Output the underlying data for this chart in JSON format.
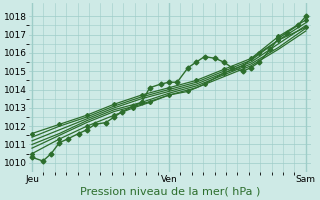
{
  "title": "",
  "xlabel": "Pression niveau de la mer( hPa )",
  "bg_color": "#ceeae6",
  "grid_color": "#9ecdc8",
  "line_color": "#2d6e2d",
  "ylim": [
    1009.5,
    1018.7
  ],
  "yticks": [
    1010,
    1011,
    1012,
    1013,
    1014,
    1015,
    1016,
    1017,
    1018
  ],
  "xtick_labels": [
    "Jeu",
    "Ven",
    "Sam"
  ],
  "xtick_positions": [
    0.0,
    0.5,
    1.0
  ],
  "xlabel_fontsize": 8,
  "tick_fontsize": 6.5,
  "series": [
    {
      "x": [
        0.0,
        0.04,
        0.07,
        0.1,
        0.13,
        0.17,
        0.2,
        0.23,
        0.27,
        0.3,
        0.33,
        0.37,
        0.4,
        0.43,
        0.47,
        0.5,
        0.53,
        0.57,
        0.6,
        0.63,
        0.67,
        0.7,
        0.73,
        0.77,
        0.8,
        0.83,
        0.87,
        0.9,
        0.93,
        0.97,
        1.0
      ],
      "y": [
        1010.3,
        1010.1,
        1010.5,
        1011.1,
        1011.3,
        1011.6,
        1011.8,
        1012.1,
        1012.2,
        1012.5,
        1012.8,
        1013.1,
        1013.3,
        1014.1,
        1014.3,
        1014.4,
        1014.4,
        1015.2,
        1015.5,
        1015.8,
        1015.7,
        1015.5,
        1015.2,
        1015.0,
        1015.2,
        1015.5,
        1016.2,
        1016.8,
        1017.1,
        1017.5,
        1018.0
      ],
      "marker": true,
      "lw": 1.0,
      "ms": 2.5
    },
    {
      "x": [
        0.0,
        0.1,
        0.2,
        0.3,
        0.37,
        0.43,
        0.5,
        0.57,
        0.63,
        0.7,
        0.77,
        0.83,
        0.9,
        1.0
      ],
      "y": [
        1010.5,
        1011.3,
        1012.0,
        1012.6,
        1013.0,
        1013.3,
        1013.7,
        1013.9,
        1014.3,
        1014.9,
        1015.3,
        1016.0,
        1016.7,
        1017.4
      ],
      "marker": true,
      "lw": 0.9,
      "ms": 2.0
    },
    {
      "x": [
        0.0,
        0.1,
        0.2,
        0.3,
        0.4,
        0.5,
        0.6,
        0.7,
        0.8,
        0.9,
        1.0
      ],
      "y": [
        1010.8,
        1011.5,
        1012.2,
        1012.8,
        1013.2,
        1013.7,
        1014.1,
        1014.7,
        1015.3,
        1016.2,
        1017.2
      ],
      "marker": false,
      "lw": 0.9,
      "ms": 0
    },
    {
      "x": [
        0.0,
        0.1,
        0.2,
        0.3,
        0.4,
        0.5,
        0.6,
        0.7,
        0.8,
        0.9,
        1.0
      ],
      "y": [
        1011.0,
        1011.6,
        1012.3,
        1012.9,
        1013.3,
        1013.8,
        1014.2,
        1014.8,
        1015.4,
        1016.3,
        1017.35
      ],
      "marker": false,
      "lw": 0.9,
      "ms": 0
    },
    {
      "x": [
        0.0,
        0.1,
        0.2,
        0.3,
        0.4,
        0.5,
        0.6,
        0.7,
        0.8,
        0.9,
        1.0
      ],
      "y": [
        1011.2,
        1011.8,
        1012.4,
        1013.0,
        1013.5,
        1013.9,
        1014.3,
        1014.9,
        1015.5,
        1016.5,
        1017.5
      ],
      "marker": false,
      "lw": 0.9,
      "ms": 0
    },
    {
      "x": [
        0.0,
        0.1,
        0.2,
        0.3,
        0.4,
        0.5,
        0.6,
        0.7,
        0.8,
        0.9,
        1.0
      ],
      "y": [
        1011.4,
        1012.0,
        1012.5,
        1013.1,
        1013.6,
        1014.0,
        1014.4,
        1015.0,
        1015.6,
        1016.7,
        1017.65
      ],
      "marker": false,
      "lw": 0.9,
      "ms": 0
    },
    {
      "x": [
        0.0,
        0.1,
        0.2,
        0.3,
        0.4,
        0.5,
        0.6,
        0.7,
        0.8,
        0.9,
        1.0
      ],
      "y": [
        1011.6,
        1012.1,
        1012.6,
        1013.2,
        1013.7,
        1014.1,
        1014.5,
        1015.1,
        1015.7,
        1016.9,
        1017.8
      ],
      "marker": true,
      "lw": 0.9,
      "ms": 2.0
    }
  ]
}
